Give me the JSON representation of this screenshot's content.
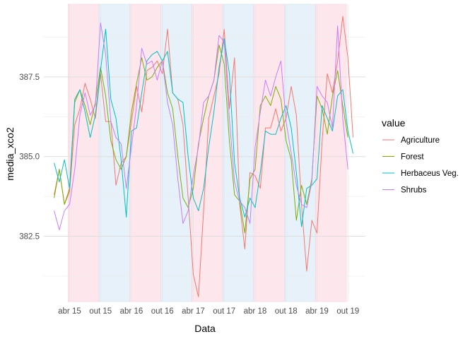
{
  "chart_data": {
    "type": "line",
    "xlabel": "Data",
    "ylabel": "media_xco2",
    "y_ticks": [
      382.5,
      385.0,
      387.5
    ],
    "y_tick_labels": [
      "382.5",
      "385.0",
      "387.5"
    ],
    "ylim": [
      380.45,
      389.78
    ],
    "x_ticks": [
      3,
      9,
      15,
      21,
      27,
      33,
      39,
      45,
      51,
      57
    ],
    "x_tick_labels": [
      "abr 15",
      "out 15",
      "abr 16",
      "out 16",
      "abr 17",
      "out 17",
      "abr 18",
      "out 18",
      "abr 19",
      "out 19"
    ],
    "xlim": [
      -2,
      60.4
    ],
    "grid": true,
    "season_bands": [
      {
        "start": 2.7,
        "end": 8.7,
        "season": "pink"
      },
      {
        "start": 8.7,
        "end": 14.7,
        "season": "blue"
      },
      {
        "start": 14.7,
        "end": 20.7,
        "season": "pink"
      },
      {
        "start": 20.7,
        "end": 26.7,
        "season": "blue"
      },
      {
        "start": 26.7,
        "end": 32.7,
        "season": "pink"
      },
      {
        "start": 32.7,
        "end": 38.7,
        "season": "blue"
      },
      {
        "start": 38.7,
        "end": 44.7,
        "season": "pink"
      },
      {
        "start": 44.7,
        "end": 50.7,
        "season": "blue"
      },
      {
        "start": 50.7,
        "end": 56.7,
        "season": "pink"
      }
    ],
    "legend_title": "value",
    "legend_position": "right",
    "series": [
      {
        "name": "Agriculture",
        "color": "#F8766D",
        "x_start": 0,
        "values": [
          383.8,
          384.6,
          383.5,
          383.9,
          386.0,
          386.5,
          387.3,
          386.8,
          386.2,
          387.6,
          386.1,
          386.1,
          384.1,
          384.8,
          385.0,
          386.1,
          387.2,
          386.4,
          387.7,
          387.8,
          388.0,
          387.6,
          389.0,
          387.0,
          386.8,
          386.0,
          383.7,
          381.3,
          380.6,
          383.3,
          386.2,
          386.9,
          387.6,
          389.0,
          386.5,
          388.1,
          383.5,
          382.1,
          384.5,
          384.4,
          384.0,
          385.9,
          385.9,
          386.5,
          385.8,
          386.2,
          387.2,
          386.3,
          383.5,
          381.4,
          383.0,
          382.6,
          385.5,
          387.6,
          387.0,
          388.0,
          389.4,
          388.1,
          385.6
        ]
      },
      {
        "name": "Forest",
        "color": "#7CAE00",
        "x_start": 0,
        "values": [
          383.7,
          384.6,
          383.5,
          384.0,
          386.7,
          387.1,
          386.6,
          386.0,
          386.7,
          387.8,
          386.9,
          385.5,
          384.9,
          384.6,
          385.0,
          386.4,
          387.3,
          388.1,
          387.4,
          387.5,
          387.8,
          388.0,
          387.0,
          386.5,
          385.0,
          383.7,
          383.4,
          384.0,
          385.4,
          386.2,
          386.9,
          387.4,
          388.5,
          387.9,
          385.5,
          383.8,
          383.6,
          382.6,
          384.3,
          384.6,
          386.6,
          386.9,
          386.6,
          387.2,
          386.8,
          385.5,
          384.9,
          383.0,
          384.1,
          383.5,
          384.3,
          386.9,
          386.5,
          385.7,
          386.9,
          387.7,
          386.6,
          385.6
        ]
      },
      {
        "name": "Herbaceus Veg.",
        "color": "#00BFC4",
        "x_start": 0,
        "values": [
          384.8,
          384.2,
          384.9,
          384.0,
          386.8,
          387.1,
          386.4,
          385.6,
          386.3,
          387.7,
          389.0,
          386.8,
          386.2,
          384.9,
          383.1,
          385.8,
          385.9,
          387.0,
          388.0,
          388.2,
          388.3,
          388.0,
          388.3,
          387.0,
          386.8,
          386.7,
          385.0,
          383.7,
          383.3,
          384.0,
          385.3,
          386.4,
          387.8,
          388.7,
          387.6,
          384.8,
          383.7,
          383.1,
          383.7,
          383.4,
          384.5,
          385.8,
          385.7,
          385.7,
          386.2,
          386.6,
          385.9,
          384.5,
          382.8,
          384.0,
          384.1,
          384.3,
          386.6,
          386.2,
          385.8,
          386.9,
          387.1,
          385.8,
          385.1
        ]
      },
      {
        "name": "Shrubs",
        "color": "#C77CFF",
        "x_start": 0,
        "values": [
          383.3,
          382.7,
          383.3,
          383.5,
          384.6,
          386.3,
          387.0,
          386.3,
          386.6,
          389.2,
          388.2,
          386.1,
          385.6,
          385.4,
          384.0,
          385.3,
          386.6,
          388.4,
          387.9,
          388.0,
          387.4,
          388.0,
          386.7,
          386.0,
          384.3,
          382.9,
          383.3,
          384.4,
          385.3,
          386.7,
          386.9,
          387.4,
          388.8,
          388.6,
          386.2,
          384.2,
          383.6,
          383.4,
          382.9,
          385.3,
          386.4,
          387.4,
          386.9,
          387.5,
          388.0,
          386.1,
          385.1,
          384.1,
          383.5,
          383.4,
          384.2,
          387.2,
          386.9,
          386.7,
          385.9,
          389.1,
          386.2,
          384.6
        ]
      }
    ]
  }
}
